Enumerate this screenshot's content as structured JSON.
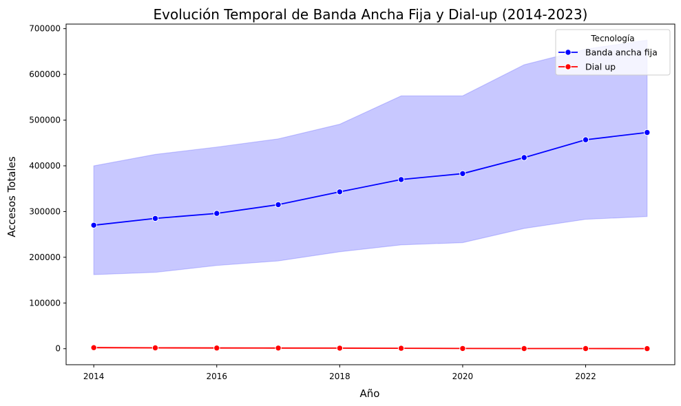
{
  "chart_data": {
    "type": "line",
    "title": "Evolución Temporal de Banda Ancha Fija y Dial-up (2014-2023)",
    "xlabel": "Año",
    "ylabel": "Accesos Totales",
    "x": [
      2014,
      2015,
      2016,
      2017,
      2018,
      2019,
      2020,
      2021,
      2022,
      2023
    ],
    "xlim": [
      2013.55,
      2023.45
    ],
    "ylim": [
      -35000,
      710000
    ],
    "xticks": [
      2014,
      2016,
      2018,
      2020,
      2022
    ],
    "yticks": [
      0,
      100000,
      200000,
      300000,
      400000,
      500000,
      600000,
      700000
    ],
    "grid": false,
    "legend": {
      "title": "Tecnología",
      "placement": "top-right"
    },
    "series": [
      {
        "name": "Banda ancha fija",
        "color": "#0000ff",
        "band_color": "#c8c8ff",
        "values": [
          270000,
          285000,
          296000,
          315000,
          343000,
          370000,
          383000,
          418000,
          457000,
          473000
        ],
        "band_upper": [
          400000,
          425000,
          441000,
          459000,
          491000,
          553000,
          553000,
          621000,
          655000,
          675000
        ],
        "band_lower": [
          162000,
          167000,
          182000,
          192000,
          212000,
          227000,
          232000,
          263000,
          283000,
          289000
        ]
      },
      {
        "name": "Dial up",
        "color": "#ff0000",
        "band_color": "#ffc8c8",
        "values": [
          2300,
          1900,
          1600,
          1400,
          1200,
          900,
          500,
          400,
          300,
          200
        ],
        "band_upper": [
          3500,
          3000,
          2600,
          2300,
          2000,
          1600,
          1100,
          900,
          800,
          700
        ],
        "band_lower": [
          1200,
          1000,
          800,
          700,
          600,
          400,
          100,
          50,
          30,
          20
        ]
      }
    ]
  }
}
